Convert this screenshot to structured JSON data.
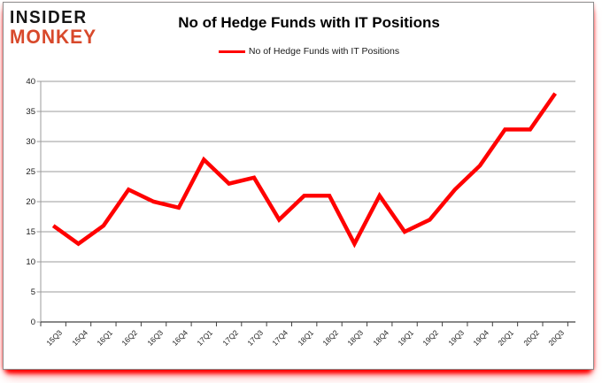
{
  "logo": {
    "line1": "INSIDER",
    "line2": "MONKEY"
  },
  "header": {
    "title": "No of Hedge Funds with IT Positions"
  },
  "legend": {
    "label": "No of Hedge Funds with IT Positions",
    "color": "#ff0000"
  },
  "chart_data": {
    "type": "line",
    "title": "No of Hedge Funds with IT Positions",
    "categories": [
      "15Q3",
      "15Q4",
      "16Q1",
      "16Q2",
      "16Q3",
      "16Q4",
      "17Q1",
      "17Q2",
      "17Q3",
      "17Q4",
      "18Q1",
      "18Q2",
      "18Q3",
      "18Q4",
      "19Q1",
      "19Q2",
      "19Q3",
      "19Q4",
      "20Q1",
      "20Q2",
      "20Q3"
    ],
    "series": [
      {
        "name": "No of Hedge Funds with IT Positions",
        "color": "#ff0000",
        "values": [
          16,
          13,
          16,
          22,
          20,
          19,
          27,
          23,
          24,
          17,
          21,
          21,
          13,
          21,
          15,
          17,
          22,
          26,
          32,
          32,
          38
        ]
      }
    ],
    "xlabel": "",
    "ylabel": "",
    "ylim": [
      0,
      40
    ],
    "yticks": [
      0,
      5,
      10,
      15,
      20,
      25,
      30,
      35,
      40
    ],
    "grid": true,
    "legend_position": "top-center"
  },
  "colors": {
    "line": "#ff0000",
    "grid": "#9b9b9b",
    "axis": "#404040",
    "logo_black": "#161616",
    "logo_red": "#d8492b",
    "frame_border": "#8c8c8c",
    "shadow": "#ff0000"
  }
}
